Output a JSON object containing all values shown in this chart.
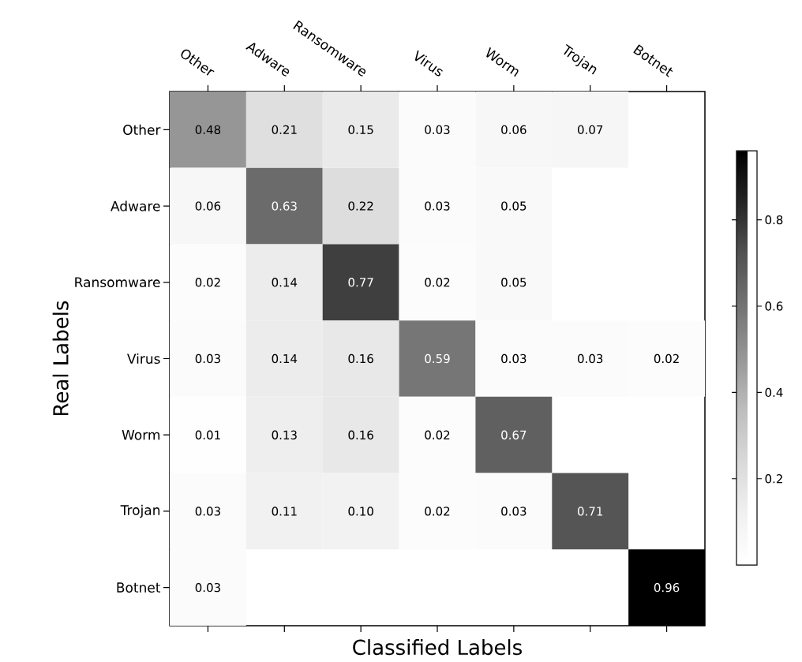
{
  "chart_data": {
    "type": "heatmap",
    "xlabel": "Classified Labels",
    "ylabel": "Real Labels",
    "categories": [
      "Other",
      "Adware",
      "Ransomware",
      "Virus",
      "Worm",
      "Trojan",
      "Botnet"
    ],
    "y_categories": [
      "Other",
      "Adware",
      "Ransomware",
      "Virus",
      "Worm",
      "Trojan",
      "Botnet"
    ],
    "cells": [
      [
        0.48,
        0.21,
        0.15,
        0.03,
        0.06,
        0.07,
        null
      ],
      [
        0.06,
        0.63,
        0.22,
        0.03,
        0.05,
        null,
        null
      ],
      [
        0.02,
        0.14,
        0.77,
        0.02,
        0.05,
        null,
        null
      ],
      [
        0.03,
        0.14,
        0.16,
        0.59,
        0.03,
        0.03,
        0.02
      ],
      [
        0.01,
        0.13,
        0.16,
        0.02,
        0.67,
        null,
        null
      ],
      [
        0.03,
        0.11,
        0.1,
        0.02,
        0.03,
        0.71,
        null
      ],
      [
        0.03,
        null,
        null,
        null,
        null,
        null,
        0.96
      ]
    ],
    "cell_labels": [
      [
        "0.48",
        "0.21",
        "0.15",
        "0.03",
        "0.06",
        "0.07",
        null
      ],
      [
        "0.06",
        "0.63",
        "0.22",
        "0.03",
        "0.05",
        null,
        null
      ],
      [
        "0.02",
        "0.14",
        "0.77",
        "0.02",
        "0.05",
        null,
        null
      ],
      [
        "0.03",
        "0.14",
        "0.16",
        "0.59",
        "0.03",
        "0.03",
        "0.02"
      ],
      [
        "0.01",
        "0.13",
        "0.16",
        "0.02",
        "0.67",
        null,
        null
      ],
      [
        "0.03",
        "0.11",
        "0.10",
        "0.02",
        "0.03",
        "0.71",
        null
      ],
      [
        "0.03",
        null,
        null,
        null,
        null,
        null,
        "0.96"
      ]
    ],
    "clim": [
      0.0,
      0.96
    ],
    "cticks": [
      0.2,
      0.4,
      0.6,
      0.8
    ]
  }
}
